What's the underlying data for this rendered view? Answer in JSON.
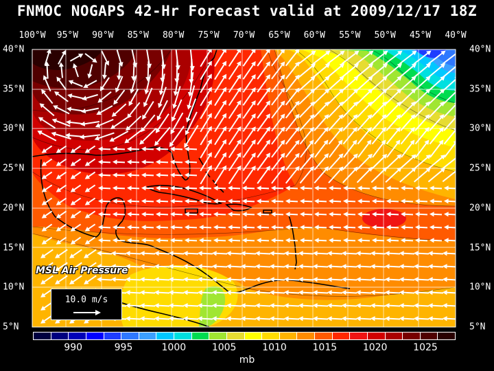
{
  "title": "FNMOC NOGAPS 42-Hr Forecast valid at 2009/12/17 18Z",
  "layer_label": "MSL Air Pressure",
  "wind_reference": {
    "label": "10.0 m/s"
  },
  "top_longitudes": [
    "100°W",
    "95°W",
    "90°W",
    "85°W",
    "80°W",
    "75°W",
    "70°W",
    "65°W",
    "60°W",
    "55°W",
    "50°W",
    "45°W",
    "40°W"
  ],
  "latitudes": [
    "40°N",
    "35°N",
    "30°N",
    "25°N",
    "20°N",
    "15°N",
    "10°N",
    "5°N"
  ],
  "colorbar": {
    "colors": [
      "#000040",
      "#000080",
      "#0000b8",
      "#0000ff",
      "#1e3cff",
      "#2f78ff",
      "#3ca0ff",
      "#00c8ff",
      "#00e0e0",
      "#00dc50",
      "#a0e632",
      "#e6dc32",
      "#ffff00",
      "#ffdc00",
      "#ffb400",
      "#ff8c00",
      "#ff5a00",
      "#ff2800",
      "#f01414",
      "#d20000",
      "#aa0000",
      "#780000",
      "#500000",
      "#2a0000"
    ],
    "tick_labels": [
      "990",
      "995",
      "1000",
      "1005",
      "1010",
      "1015",
      "1020",
      "1025"
    ],
    "tick_values": [
      990,
      995,
      1000,
      1005,
      1010,
      1015,
      1020,
      1025
    ],
    "min": 986,
    "max": 1028,
    "unit": "mb"
  }
}
